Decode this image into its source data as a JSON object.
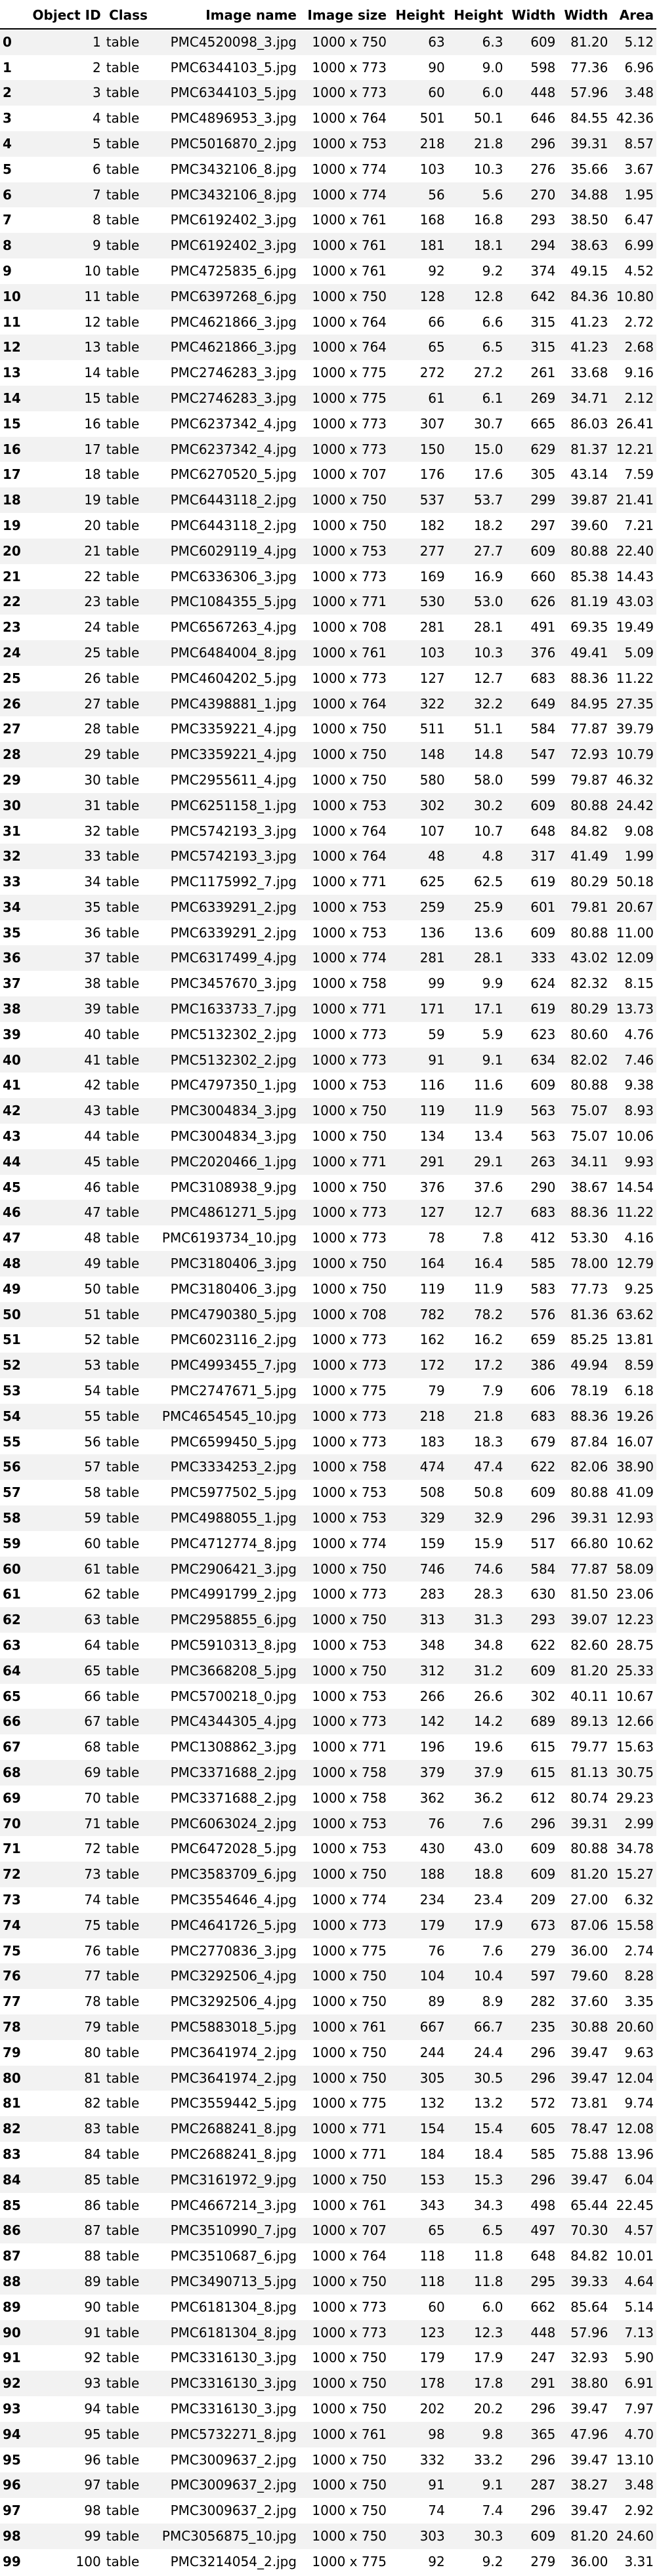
{
  "table": {
    "columns": [
      "",
      "Object ID",
      "Class",
      "Image name",
      "Image size",
      "Height",
      "Height",
      "Width",
      "Width",
      "Area"
    ],
    "rows": [
      [
        "0",
        "1",
        "table",
        "PMC4520098_3.jpg",
        "1000 x 750",
        "63",
        "6.3",
        "609",
        "81.20",
        "5.12"
      ],
      [
        "1",
        "2",
        "table",
        "PMC6344103_5.jpg",
        "1000 x 773",
        "90",
        "9.0",
        "598",
        "77.36",
        "6.96"
      ],
      [
        "2",
        "3",
        "table",
        "PMC6344103_5.jpg",
        "1000 x 773",
        "60",
        "6.0",
        "448",
        "57.96",
        "3.48"
      ],
      [
        "3",
        "4",
        "table",
        "PMC4896953_3.jpg",
        "1000 x 764",
        "501",
        "50.1",
        "646",
        "84.55",
        "42.36"
      ],
      [
        "4",
        "5",
        "table",
        "PMC5016870_2.jpg",
        "1000 x 753",
        "218",
        "21.8",
        "296",
        "39.31",
        "8.57"
      ],
      [
        "5",
        "6",
        "table",
        "PMC3432106_8.jpg",
        "1000 x 774",
        "103",
        "10.3",
        "276",
        "35.66",
        "3.67"
      ],
      [
        "6",
        "7",
        "table",
        "PMC3432106_8.jpg",
        "1000 x 774",
        "56",
        "5.6",
        "270",
        "34.88",
        "1.95"
      ],
      [
        "7",
        "8",
        "table",
        "PMC6192402_3.jpg",
        "1000 x 761",
        "168",
        "16.8",
        "293",
        "38.50",
        "6.47"
      ],
      [
        "8",
        "9",
        "table",
        "PMC6192402_3.jpg",
        "1000 x 761",
        "181",
        "18.1",
        "294",
        "38.63",
        "6.99"
      ],
      [
        "9",
        "10",
        "table",
        "PMC4725835_6.jpg",
        "1000 x 761",
        "92",
        "9.2",
        "374",
        "49.15",
        "4.52"
      ],
      [
        "10",
        "11",
        "table",
        "PMC6397268_6.jpg",
        "1000 x 750",
        "128",
        "12.8",
        "642",
        "84.36",
        "10.80"
      ],
      [
        "11",
        "12",
        "table",
        "PMC4621866_3.jpg",
        "1000 x 764",
        "66",
        "6.6",
        "315",
        "41.23",
        "2.72"
      ],
      [
        "12",
        "13",
        "table",
        "PMC4621866_3.jpg",
        "1000 x 764",
        "65",
        "6.5",
        "315",
        "41.23",
        "2.68"
      ],
      [
        "13",
        "14",
        "table",
        "PMC2746283_3.jpg",
        "1000 x 775",
        "272",
        "27.2",
        "261",
        "33.68",
        "9.16"
      ],
      [
        "14",
        "15",
        "table",
        "PMC2746283_3.jpg",
        "1000 x 775",
        "61",
        "6.1",
        "269",
        "34.71",
        "2.12"
      ],
      [
        "15",
        "16",
        "table",
        "PMC6237342_4.jpg",
        "1000 x 773",
        "307",
        "30.7",
        "665",
        "86.03",
        "26.41"
      ],
      [
        "16",
        "17",
        "table",
        "PMC6237342_4.jpg",
        "1000 x 773",
        "150",
        "15.0",
        "629",
        "81.37",
        "12.21"
      ],
      [
        "17",
        "18",
        "table",
        "PMC6270520_5.jpg",
        "1000 x 707",
        "176",
        "17.6",
        "305",
        "43.14",
        "7.59"
      ],
      [
        "18",
        "19",
        "table",
        "PMC6443118_2.jpg",
        "1000 x 750",
        "537",
        "53.7",
        "299",
        "39.87",
        "21.41"
      ],
      [
        "19",
        "20",
        "table",
        "PMC6443118_2.jpg",
        "1000 x 750",
        "182",
        "18.2",
        "297",
        "39.60",
        "7.21"
      ],
      [
        "20",
        "21",
        "table",
        "PMC6029119_4.jpg",
        "1000 x 753",
        "277",
        "27.7",
        "609",
        "80.88",
        "22.40"
      ],
      [
        "21",
        "22",
        "table",
        "PMC6336306_3.jpg",
        "1000 x 773",
        "169",
        "16.9",
        "660",
        "85.38",
        "14.43"
      ],
      [
        "22",
        "23",
        "table",
        "PMC1084355_5.jpg",
        "1000 x 771",
        "530",
        "53.0",
        "626",
        "81.19",
        "43.03"
      ],
      [
        "23",
        "24",
        "table",
        "PMC6567263_4.jpg",
        "1000 x 708",
        "281",
        "28.1",
        "491",
        "69.35",
        "19.49"
      ],
      [
        "24",
        "25",
        "table",
        "PMC6484004_8.jpg",
        "1000 x 761",
        "103",
        "10.3",
        "376",
        "49.41",
        "5.09"
      ],
      [
        "25",
        "26",
        "table",
        "PMC4604202_5.jpg",
        "1000 x 773",
        "127",
        "12.7",
        "683",
        "88.36",
        "11.22"
      ],
      [
        "26",
        "27",
        "table",
        "PMC4398881_1.jpg",
        "1000 x 764",
        "322",
        "32.2",
        "649",
        "84.95",
        "27.35"
      ],
      [
        "27",
        "28",
        "table",
        "PMC3359221_4.jpg",
        "1000 x 750",
        "511",
        "51.1",
        "584",
        "77.87",
        "39.79"
      ],
      [
        "28",
        "29",
        "table",
        "PMC3359221_4.jpg",
        "1000 x 750",
        "148",
        "14.8",
        "547",
        "72.93",
        "10.79"
      ],
      [
        "29",
        "30",
        "table",
        "PMC2955611_4.jpg",
        "1000 x 750",
        "580",
        "58.0",
        "599",
        "79.87",
        "46.32"
      ],
      [
        "30",
        "31",
        "table",
        "PMC6251158_1.jpg",
        "1000 x 753",
        "302",
        "30.2",
        "609",
        "80.88",
        "24.42"
      ],
      [
        "31",
        "32",
        "table",
        "PMC5742193_3.jpg",
        "1000 x 764",
        "107",
        "10.7",
        "648",
        "84.82",
        "9.08"
      ],
      [
        "32",
        "33",
        "table",
        "PMC5742193_3.jpg",
        "1000 x 764",
        "48",
        "4.8",
        "317",
        "41.49",
        "1.99"
      ],
      [
        "33",
        "34",
        "table",
        "PMC1175992_7.jpg",
        "1000 x 771",
        "625",
        "62.5",
        "619",
        "80.29",
        "50.18"
      ],
      [
        "34",
        "35",
        "table",
        "PMC6339291_2.jpg",
        "1000 x 753",
        "259",
        "25.9",
        "601",
        "79.81",
        "20.67"
      ],
      [
        "35",
        "36",
        "table",
        "PMC6339291_2.jpg",
        "1000 x 753",
        "136",
        "13.6",
        "609",
        "80.88",
        "11.00"
      ],
      [
        "36",
        "37",
        "table",
        "PMC6317499_4.jpg",
        "1000 x 774",
        "281",
        "28.1",
        "333",
        "43.02",
        "12.09"
      ],
      [
        "37",
        "38",
        "table",
        "PMC3457670_3.jpg",
        "1000 x 758",
        "99",
        "9.9",
        "624",
        "82.32",
        "8.15"
      ],
      [
        "38",
        "39",
        "table",
        "PMC1633733_7.jpg",
        "1000 x 771",
        "171",
        "17.1",
        "619",
        "80.29",
        "13.73"
      ],
      [
        "39",
        "40",
        "table",
        "PMC5132302_2.jpg",
        "1000 x 773",
        "59",
        "5.9",
        "623",
        "80.60",
        "4.76"
      ],
      [
        "40",
        "41",
        "table",
        "PMC5132302_2.jpg",
        "1000 x 773",
        "91",
        "9.1",
        "634",
        "82.02",
        "7.46"
      ],
      [
        "41",
        "42",
        "table",
        "PMC4797350_1.jpg",
        "1000 x 753",
        "116",
        "11.6",
        "609",
        "80.88",
        "9.38"
      ],
      [
        "42",
        "43",
        "table",
        "PMC3004834_3.jpg",
        "1000 x 750",
        "119",
        "11.9",
        "563",
        "75.07",
        "8.93"
      ],
      [
        "43",
        "44",
        "table",
        "PMC3004834_3.jpg",
        "1000 x 750",
        "134",
        "13.4",
        "563",
        "75.07",
        "10.06"
      ],
      [
        "44",
        "45",
        "table",
        "PMC2020466_1.jpg",
        "1000 x 771",
        "291",
        "29.1",
        "263",
        "34.11",
        "9.93"
      ],
      [
        "45",
        "46",
        "table",
        "PMC3108938_9.jpg",
        "1000 x 750",
        "376",
        "37.6",
        "290",
        "38.67",
        "14.54"
      ],
      [
        "46",
        "47",
        "table",
        "PMC4861271_5.jpg",
        "1000 x 773",
        "127",
        "12.7",
        "683",
        "88.36",
        "11.22"
      ],
      [
        "47",
        "48",
        "table",
        "PMC6193734_10.jpg",
        "1000 x 773",
        "78",
        "7.8",
        "412",
        "53.30",
        "4.16"
      ],
      [
        "48",
        "49",
        "table",
        "PMC3180406_3.jpg",
        "1000 x 750",
        "164",
        "16.4",
        "585",
        "78.00",
        "12.79"
      ],
      [
        "49",
        "50",
        "table",
        "PMC3180406_3.jpg",
        "1000 x 750",
        "119",
        "11.9",
        "583",
        "77.73",
        "9.25"
      ],
      [
        "50",
        "51",
        "table",
        "PMC4790380_5.jpg",
        "1000 x 708",
        "782",
        "78.2",
        "576",
        "81.36",
        "63.62"
      ],
      [
        "51",
        "52",
        "table",
        "PMC6023116_2.jpg",
        "1000 x 773",
        "162",
        "16.2",
        "659",
        "85.25",
        "13.81"
      ],
      [
        "52",
        "53",
        "table",
        "PMC4993455_7.jpg",
        "1000 x 773",
        "172",
        "17.2",
        "386",
        "49.94",
        "8.59"
      ],
      [
        "53",
        "54",
        "table",
        "PMC2747671_5.jpg",
        "1000 x 775",
        "79",
        "7.9",
        "606",
        "78.19",
        "6.18"
      ],
      [
        "54",
        "55",
        "table",
        "PMC4654545_10.jpg",
        "1000 x 773",
        "218",
        "21.8",
        "683",
        "88.36",
        "19.26"
      ],
      [
        "55",
        "56",
        "table",
        "PMC6599450_5.jpg",
        "1000 x 773",
        "183",
        "18.3",
        "679",
        "87.84",
        "16.07"
      ],
      [
        "56",
        "57",
        "table",
        "PMC3334253_2.jpg",
        "1000 x 758",
        "474",
        "47.4",
        "622",
        "82.06",
        "38.90"
      ],
      [
        "57",
        "58",
        "table",
        "PMC5977502_5.jpg",
        "1000 x 753",
        "508",
        "50.8",
        "609",
        "80.88",
        "41.09"
      ],
      [
        "58",
        "59",
        "table",
        "PMC4988055_1.jpg",
        "1000 x 753",
        "329",
        "32.9",
        "296",
        "39.31",
        "12.93"
      ],
      [
        "59",
        "60",
        "table",
        "PMC4712774_8.jpg",
        "1000 x 774",
        "159",
        "15.9",
        "517",
        "66.80",
        "10.62"
      ],
      [
        "60",
        "61",
        "table",
        "PMC2906421_3.jpg",
        "1000 x 750",
        "746",
        "74.6",
        "584",
        "77.87",
        "58.09"
      ],
      [
        "61",
        "62",
        "table",
        "PMC4991799_2.jpg",
        "1000 x 773",
        "283",
        "28.3",
        "630",
        "81.50",
        "23.06"
      ],
      [
        "62",
        "63",
        "table",
        "PMC2958855_6.jpg",
        "1000 x 750",
        "313",
        "31.3",
        "293",
        "39.07",
        "12.23"
      ],
      [
        "63",
        "64",
        "table",
        "PMC5910313_8.jpg",
        "1000 x 753",
        "348",
        "34.8",
        "622",
        "82.60",
        "28.75"
      ],
      [
        "64",
        "65",
        "table",
        "PMC3668208_5.jpg",
        "1000 x 750",
        "312",
        "31.2",
        "609",
        "81.20",
        "25.33"
      ],
      [
        "65",
        "66",
        "table",
        "PMC5700218_0.jpg",
        "1000 x 753",
        "266",
        "26.6",
        "302",
        "40.11",
        "10.67"
      ],
      [
        "66",
        "67",
        "table",
        "PMC4344305_4.jpg",
        "1000 x 773",
        "142",
        "14.2",
        "689",
        "89.13",
        "12.66"
      ],
      [
        "67",
        "68",
        "table",
        "PMC1308862_3.jpg",
        "1000 x 771",
        "196",
        "19.6",
        "615",
        "79.77",
        "15.63"
      ],
      [
        "68",
        "69",
        "table",
        "PMC3371688_2.jpg",
        "1000 x 758",
        "379",
        "37.9",
        "615",
        "81.13",
        "30.75"
      ],
      [
        "69",
        "70",
        "table",
        "PMC3371688_2.jpg",
        "1000 x 758",
        "362",
        "36.2",
        "612",
        "80.74",
        "29.23"
      ],
      [
        "70",
        "71",
        "table",
        "PMC6063024_2.jpg",
        "1000 x 753",
        "76",
        "7.6",
        "296",
        "39.31",
        "2.99"
      ],
      [
        "71",
        "72",
        "table",
        "PMC6472028_5.jpg",
        "1000 x 753",
        "430",
        "43.0",
        "609",
        "80.88",
        "34.78"
      ],
      [
        "72",
        "73",
        "table",
        "PMC3583709_6.jpg",
        "1000 x 750",
        "188",
        "18.8",
        "609",
        "81.20",
        "15.27"
      ],
      [
        "73",
        "74",
        "table",
        "PMC3554646_4.jpg",
        "1000 x 774",
        "234",
        "23.4",
        "209",
        "27.00",
        "6.32"
      ],
      [
        "74",
        "75",
        "table",
        "PMC4641726_5.jpg",
        "1000 x 773",
        "179",
        "17.9",
        "673",
        "87.06",
        "15.58"
      ],
      [
        "75",
        "76",
        "table",
        "PMC2770836_3.jpg",
        "1000 x 775",
        "76",
        "7.6",
        "279",
        "36.00",
        "2.74"
      ],
      [
        "76",
        "77",
        "table",
        "PMC3292506_4.jpg",
        "1000 x 750",
        "104",
        "10.4",
        "597",
        "79.60",
        "8.28"
      ],
      [
        "77",
        "78",
        "table",
        "PMC3292506_4.jpg",
        "1000 x 750",
        "89",
        "8.9",
        "282",
        "37.60",
        "3.35"
      ],
      [
        "78",
        "79",
        "table",
        "PMC5883018_5.jpg",
        "1000 x 761",
        "667",
        "66.7",
        "235",
        "30.88",
        "20.60"
      ],
      [
        "79",
        "80",
        "table",
        "PMC3641974_2.jpg",
        "1000 x 750",
        "244",
        "24.4",
        "296",
        "39.47",
        "9.63"
      ],
      [
        "80",
        "81",
        "table",
        "PMC3641974_2.jpg",
        "1000 x 750",
        "305",
        "30.5",
        "296",
        "39.47",
        "12.04"
      ],
      [
        "81",
        "82",
        "table",
        "PMC3559442_5.jpg",
        "1000 x 775",
        "132",
        "13.2",
        "572",
        "73.81",
        "9.74"
      ],
      [
        "82",
        "83",
        "table",
        "PMC2688241_8.jpg",
        "1000 x 771",
        "154",
        "15.4",
        "605",
        "78.47",
        "12.08"
      ],
      [
        "83",
        "84",
        "table",
        "PMC2688241_8.jpg",
        "1000 x 771",
        "184",
        "18.4",
        "585",
        "75.88",
        "13.96"
      ],
      [
        "84",
        "85",
        "table",
        "PMC3161972_9.jpg",
        "1000 x 750",
        "153",
        "15.3",
        "296",
        "39.47",
        "6.04"
      ],
      [
        "85",
        "86",
        "table",
        "PMC4667214_3.jpg",
        "1000 x 761",
        "343",
        "34.3",
        "498",
        "65.44",
        "22.45"
      ],
      [
        "86",
        "87",
        "table",
        "PMC3510990_7.jpg",
        "1000 x 707",
        "65",
        "6.5",
        "497",
        "70.30",
        "4.57"
      ],
      [
        "87",
        "88",
        "table",
        "PMC3510687_6.jpg",
        "1000 x 764",
        "118",
        "11.8",
        "648",
        "84.82",
        "10.01"
      ],
      [
        "88",
        "89",
        "table",
        "PMC3490713_5.jpg",
        "1000 x 750",
        "118",
        "11.8",
        "295",
        "39.33",
        "4.64"
      ],
      [
        "89",
        "90",
        "table",
        "PMC6181304_8.jpg",
        "1000 x 773",
        "60",
        "6.0",
        "662",
        "85.64",
        "5.14"
      ],
      [
        "90",
        "91",
        "table",
        "PMC6181304_8.jpg",
        "1000 x 773",
        "123",
        "12.3",
        "448",
        "57.96",
        "7.13"
      ],
      [
        "91",
        "92",
        "table",
        "PMC3316130_3.jpg",
        "1000 x 750",
        "179",
        "17.9",
        "247",
        "32.93",
        "5.90"
      ],
      [
        "92",
        "93",
        "table",
        "PMC3316130_3.jpg",
        "1000 x 750",
        "178",
        "17.8",
        "291",
        "38.80",
        "6.91"
      ],
      [
        "93",
        "94",
        "table",
        "PMC3316130_3.jpg",
        "1000 x 750",
        "202",
        "20.2",
        "296",
        "39.47",
        "7.97"
      ],
      [
        "94",
        "95",
        "table",
        "PMC5732271_8.jpg",
        "1000 x 761",
        "98",
        "9.8",
        "365",
        "47.96",
        "4.70"
      ],
      [
        "95",
        "96",
        "table",
        "PMC3009637_2.jpg",
        "1000 x 750",
        "332",
        "33.2",
        "296",
        "39.47",
        "13.10"
      ],
      [
        "96",
        "97",
        "table",
        "PMC3009637_2.jpg",
        "1000 x 750",
        "91",
        "9.1",
        "287",
        "38.27",
        "3.48"
      ],
      [
        "97",
        "98",
        "table",
        "PMC3009637_2.jpg",
        "1000 x 750",
        "74",
        "7.4",
        "296",
        "39.47",
        "2.92"
      ],
      [
        "98",
        "99",
        "table",
        "PMC3056875_10.jpg",
        "1000 x 750",
        "303",
        "30.3",
        "609",
        "81.20",
        "24.60"
      ],
      [
        "99",
        "100",
        "table",
        "PMC3214054_2.jpg",
        "1000 x 775",
        "92",
        "9.2",
        "279",
        "36.00",
        "3.31"
      ]
    ]
  }
}
